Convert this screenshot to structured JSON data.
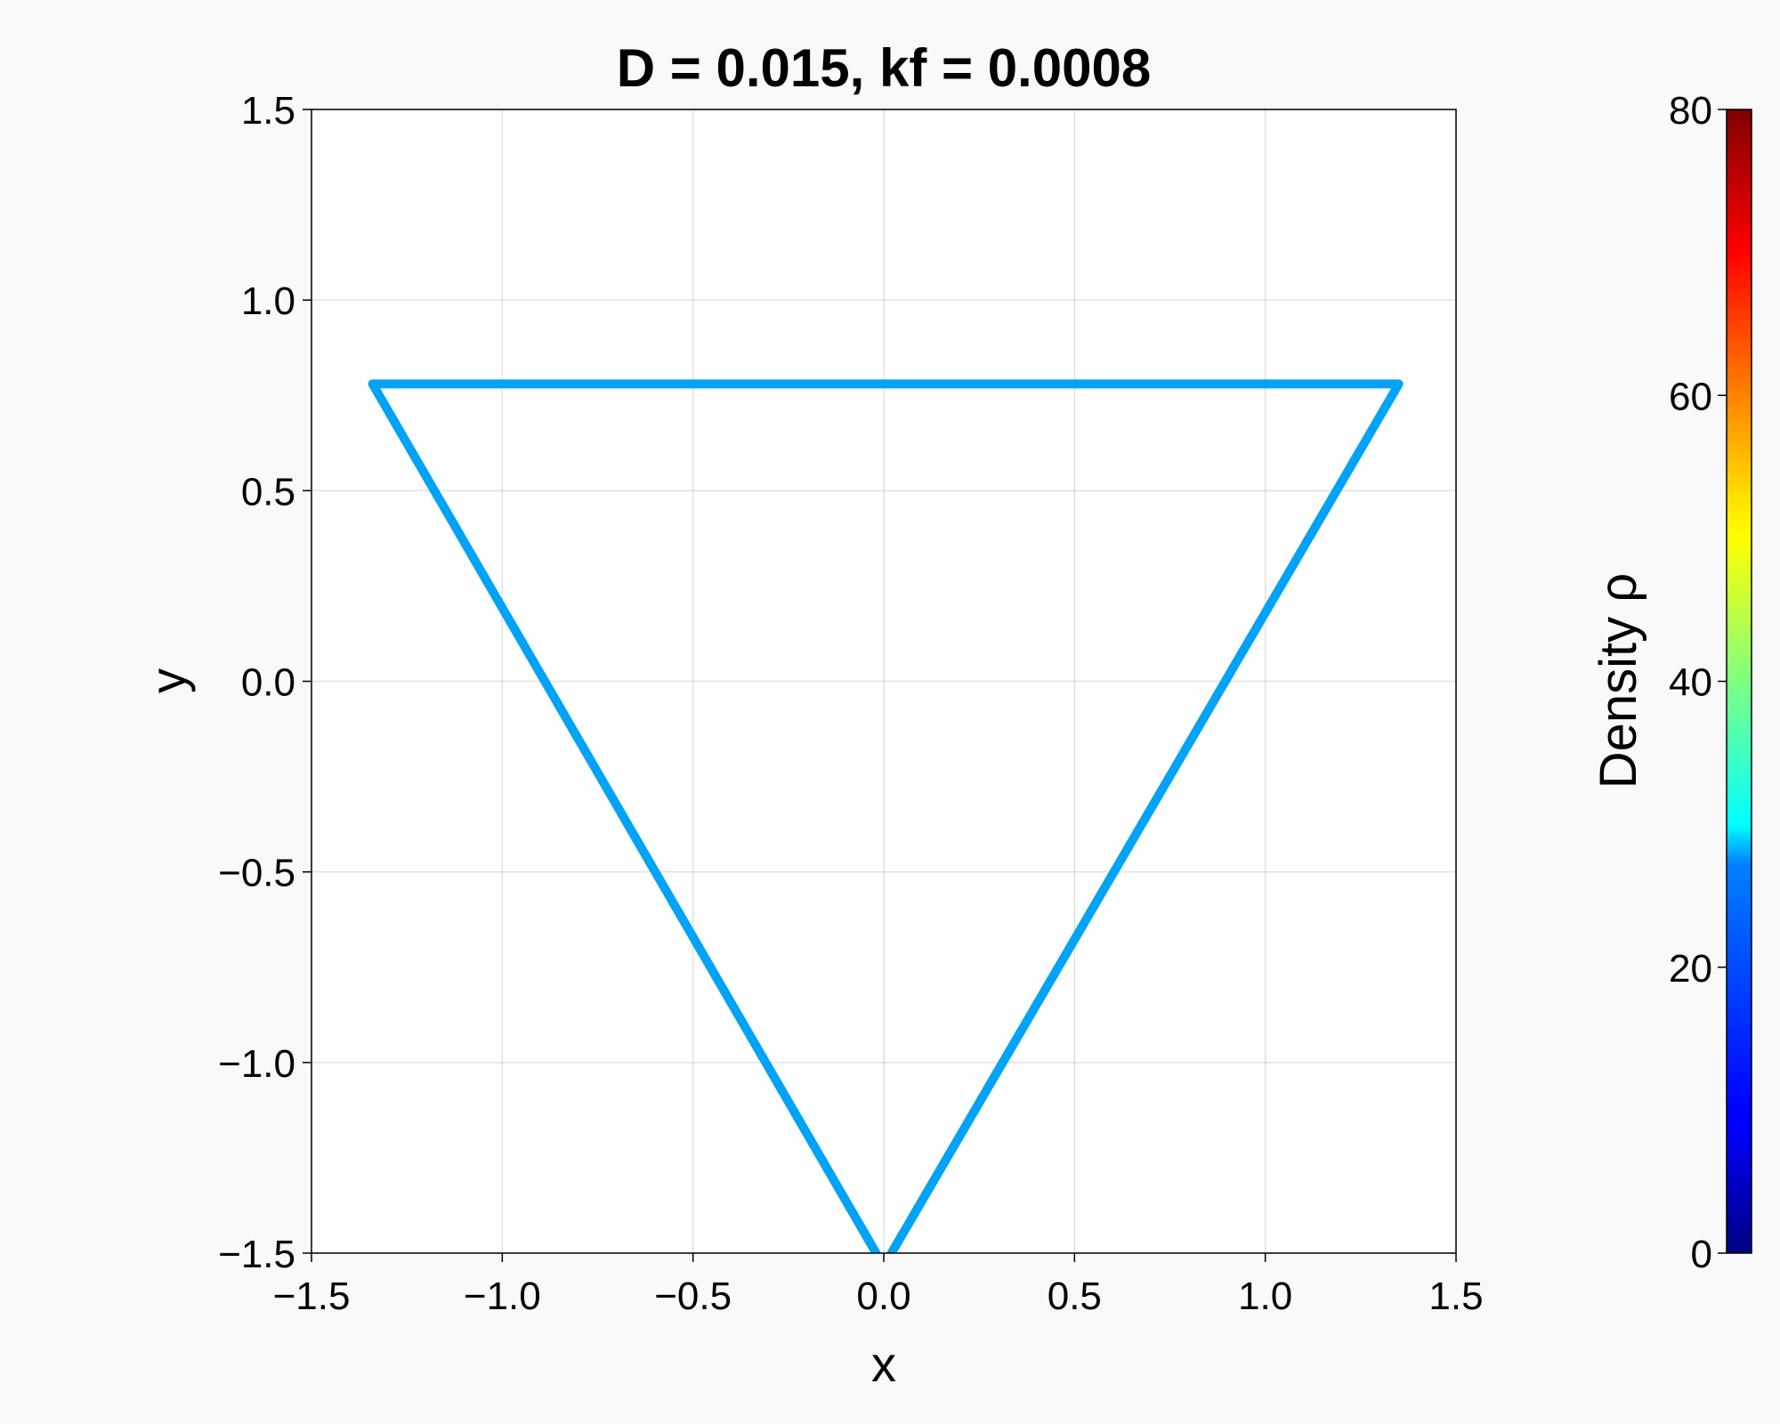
{
  "chart_data": {
    "type": "line",
    "title": "D = 0.015, kf = 0.0008",
    "xlabel": "x",
    "ylabel": "y",
    "xlim": [
      -1.5,
      1.5
    ],
    "ylim": [
      -1.5,
      1.5
    ],
    "xticks": [
      -1.5,
      -1.0,
      -0.5,
      0.0,
      0.5,
      1.0,
      1.5
    ],
    "yticks": [
      -1.5,
      -1.0,
      -0.5,
      0.0,
      0.5,
      1.0,
      1.5
    ],
    "xtick_labels": [
      "−1.5",
      "−1.0",
      "−0.5",
      "0.0",
      "0.5",
      "1.0",
      "1.5"
    ],
    "ytick_labels": [
      "−1.5",
      "−1.0",
      "−0.5",
      "0.0",
      "0.5",
      "1.0",
      "1.5"
    ],
    "grid": true,
    "series": [
      {
        "x": [
          -0.02,
          -1.34,
          1.35,
          0.02
        ],
        "y": [
          -1.5,
          0.78,
          0.78,
          -1.5
        ],
        "density": 25,
        "color": "#00a3f5"
      }
    ],
    "colorbar": {
      "label": "Density ρ",
      "range": [
        0,
        80
      ],
      "ticks": [
        0,
        20,
        40,
        60,
        80
      ],
      "tick_labels": [
        "0",
        "20",
        "40",
        "60",
        "80"
      ],
      "colormap": "jet"
    }
  }
}
